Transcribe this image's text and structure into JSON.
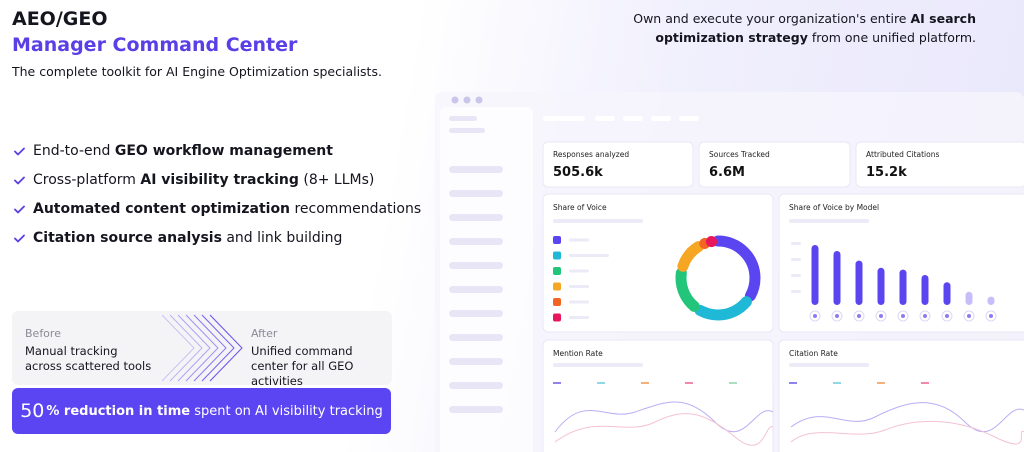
{
  "header": {
    "title": "AEO/GEO",
    "subtitle": "Manager Command Center",
    "tagline": "The complete toolkit for AI Engine Optimization specialists."
  },
  "intro": [
    {
      "text": "Own and execute your organization's entire ",
      "bold": false
    },
    {
      "text": "AI search optimization strategy",
      "bold": true
    },
    {
      "text": " from one unified platform.",
      "bold": false
    }
  ],
  "features": [
    [
      {
        "text": "End-to-end ",
        "bold": false
      },
      {
        "text": "GEO workflow management",
        "bold": true
      }
    ],
    [
      {
        "text": "Cross-platform ",
        "bold": false
      },
      {
        "text": "AI visibility tracking",
        "bold": true
      },
      {
        "text": " (8+ LLMs)",
        "bold": false
      }
    ],
    [
      {
        "text": "Automated content optimization",
        "bold": true
      },
      {
        "text": " recommendations",
        "bold": false
      }
    ],
    [
      {
        "text": "Citation source analysis",
        "bold": true
      },
      {
        "text": " and link building",
        "bold": false
      }
    ]
  ],
  "comparison": {
    "before": {
      "label": "Before",
      "text": "Manual tracking across scattered tools"
    },
    "after": {
      "label": "After",
      "text": "Unified command center for all GEO activities"
    }
  },
  "banner": [
    {
      "text": "50",
      "style": "big"
    },
    {
      "text": "%",
      "style": "bold"
    },
    {
      "text": " reduction in time",
      "style": "bold"
    },
    {
      "text": " spent on AI visibility tracking",
      "style": "regular"
    }
  ],
  "dashboard": {
    "metrics": [
      {
        "label": "Responses analyzed",
        "value": "505.6k"
      },
      {
        "label": "Sources Tracked",
        "value": "6.6M"
      },
      {
        "label": "Attributed Citations",
        "value": "15.2k"
      }
    ],
    "share_of_voice": {
      "title": "Share of Voice",
      "segments": [
        {
          "value": 36,
          "color": "#5b45f0"
        },
        {
          "value": 25,
          "color": "#1fb8d6"
        },
        {
          "value": 19,
          "color": "#22c57a"
        },
        {
          "value": 14,
          "color": "#f5a623"
        },
        {
          "value": 3,
          "color": "#f26522"
        },
        {
          "value": 3,
          "color": "#e8175d"
        }
      ]
    },
    "share_by_model": {
      "title": "Share of Voice by Model",
      "color": "#5b45f0",
      "values": [
        100,
        90,
        74,
        62,
        59,
        50,
        38,
        22,
        14
      ]
    },
    "mention_rate": {
      "title": "Mention Rate"
    },
    "citation_rate": {
      "title": "Citation Rate"
    }
  }
}
